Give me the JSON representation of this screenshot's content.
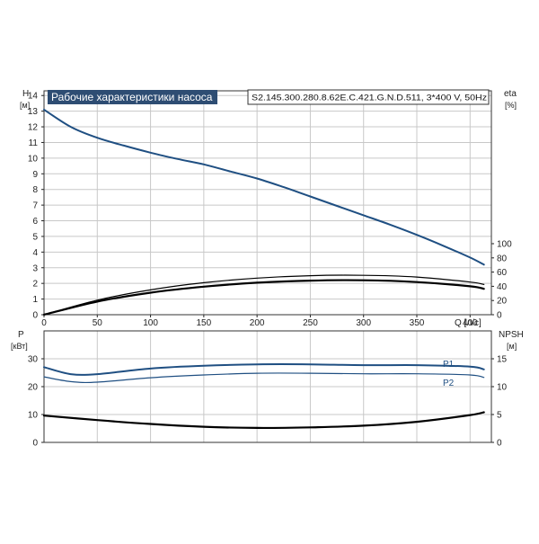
{
  "chart_data": [
    {
      "type": "line",
      "title": "Рабочие характеристики насоса",
      "model": "S2.145.300.280.8.62E.C.421.G.N.D.511, 3*400 V, 50Hz",
      "xlabel": "Q [л/с]",
      "ylabel_left": "H",
      "ylabel_left_unit": "[м]",
      "ylabel_right": "eta",
      "ylabel_right_unit": "[%]",
      "xlim": [
        0,
        420
      ],
      "ylim_left": [
        0,
        14
      ],
      "ylim_right": [
        0,
        100
      ],
      "x_ticks": [
        0,
        50,
        100,
        150,
        200,
        250,
        300,
        350,
        400
      ],
      "y_left_ticks": [
        0,
        1,
        2,
        3,
        4,
        5,
        6,
        7,
        8,
        9,
        10,
        11,
        12,
        13,
        14
      ],
      "y_right_ticks": [
        0,
        20,
        40,
        60,
        80,
        100
      ],
      "grid": true,
      "colors": {
        "head": "#1f4f82",
        "eta": "#000000",
        "grid": "#c8c8c8",
        "title_bg": "#2e4d73"
      },
      "series": [
        {
          "key": "H",
          "axis": "left",
          "color": "#1f4f82",
          "width": 2,
          "x": [
            0,
            25,
            50,
            75,
            100,
            125,
            150,
            175,
            200,
            225,
            250,
            275,
            300,
            325,
            350,
            375,
            400,
            413
          ],
          "y": [
            13.1,
            12.0,
            11.3,
            10.8,
            10.35,
            9.95,
            9.6,
            9.15,
            8.7,
            8.15,
            7.55,
            6.95,
            6.35,
            5.75,
            5.1,
            4.4,
            3.65,
            3.2
          ]
        },
        {
          "key": "eta1",
          "axis": "right",
          "color": "#000000",
          "width": 1.2,
          "x": [
            0,
            50,
            100,
            150,
            200,
            250,
            300,
            350,
            400,
            413
          ],
          "y": [
            0,
            20.5,
            35,
            45,
            51.5,
            55,
            55.5,
            53,
            46,
            42.5
          ]
        },
        {
          "key": "eta2",
          "axis": "right",
          "color": "#000000",
          "width": 2.2,
          "x": [
            0,
            50,
            100,
            150,
            200,
            250,
            300,
            350,
            400,
            413
          ],
          "y": [
            0,
            18.5,
            31,
            39.5,
            45,
            48,
            48.5,
            46,
            40,
            36.5
          ]
        }
      ]
    },
    {
      "type": "line",
      "ylabel_left": "P",
      "ylabel_left_unit": "[кВт]",
      "ylabel_right": "NPSH",
      "ylabel_right_unit": "[м]",
      "xlim": [
        0,
        420
      ],
      "ylim_left": [
        0,
        35
      ],
      "ylim_right": [
        0,
        17.5
      ],
      "y_left_ticks": [
        0,
        10,
        20,
        30
      ],
      "y_right_ticks": [
        0,
        5,
        10,
        15
      ],
      "grid": true,
      "series": [
        {
          "name": "P1",
          "axis": "left",
          "color": "#1f4f82",
          "width": 2,
          "x": [
            0,
            25,
            50,
            100,
            150,
            200,
            250,
            300,
            350,
            400,
            413
          ],
          "y": [
            27,
            24.5,
            24.5,
            26.5,
            27.5,
            28,
            28,
            27.7,
            27.7,
            27.2,
            26.2
          ]
        },
        {
          "name": "P2",
          "axis": "left",
          "color": "#1f4f82",
          "width": 1.2,
          "x": [
            0,
            25,
            50,
            100,
            150,
            200,
            250,
            300,
            350,
            400,
            413
          ],
          "y": [
            23.5,
            21.8,
            21.6,
            23.2,
            24.2,
            24.8,
            24.8,
            24.6,
            24.6,
            24.2,
            23.3
          ]
        },
        {
          "key": "NPSH",
          "axis": "right",
          "color": "#000000",
          "width": 2.2,
          "x": [
            0,
            50,
            100,
            150,
            200,
            250,
            300,
            350,
            400,
            413
          ],
          "y": [
            4.8,
            4.0,
            3.3,
            2.8,
            2.6,
            2.7,
            3.0,
            3.7,
            4.9,
            5.4
          ]
        }
      ]
    }
  ]
}
